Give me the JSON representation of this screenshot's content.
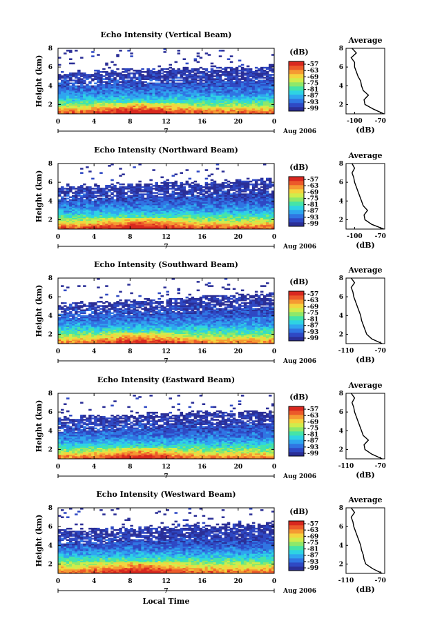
{
  "figure": {
    "xlabel": "Local Time",
    "date_label": "Aug 2006",
    "x_ticks": [
      "0",
      "4",
      "8",
      "12",
      "16",
      "20",
      "0"
    ],
    "x_mid_label": "7",
    "ylabel": "Height (km)",
    "y_ticks": [
      "2",
      "4",
      "6",
      "8"
    ],
    "colorbar_unit": "(dB)",
    "colorbar_ticks": [
      "-57",
      "-63",
      "-69",
      "-75",
      "-81",
      "-87",
      "-93",
      "-99"
    ],
    "colormap": [
      "#2b2f97",
      "#2f49c4",
      "#3075e3",
      "#2fa6ef",
      "#2ed3e3",
      "#45e4a8",
      "#8ee86a",
      "#d0ec4c",
      "#f4d43e",
      "#f59a32",
      "#ec5a2a",
      "#d9281f"
    ],
    "average_title": "Average",
    "average_xlabel": "(dB)"
  },
  "chart_data": [
    {
      "type": "heatmap",
      "title": "Echo Intensity (Vertical Beam)",
      "xlabel": "Local Time",
      "ylabel": "Height (km)",
      "xlim": [
        0,
        24
      ],
      "ylim": [
        1,
        8
      ],
      "colorbar": {
        "label": "(dB)",
        "range": [
          -99,
          -54
        ]
      },
      "average_profile": {
        "title": "Average",
        "xlabel": "(dB)",
        "xlim": [
          -110,
          -65
        ],
        "x_ticks": [
          "-100",
          "-70"
        ],
        "heights": [
          1.0,
          1.5,
          2.0,
          2.5,
          3.0,
          3.5,
          4.0,
          4.5,
          5.0,
          5.5,
          6.0,
          6.5,
          7.0,
          7.5,
          8.0
        ],
        "values": [
          -66,
          -78,
          -88,
          -89,
          -84,
          -90,
          -92,
          -93,
          -96,
          -98,
          -100,
          -100,
          -104,
          -98,
          -103
        ]
      },
      "intensity_field": {
        "bands": [
          {
            "height": 1.2,
            "value": -60
          },
          {
            "height": 2.0,
            "value": -75
          },
          {
            "height": 3.0,
            "value": -87
          },
          {
            "height": 4.0,
            "value": -92
          },
          {
            "height": 5.0,
            "value": -95
          },
          {
            "height": 6.0,
            "value": -97
          },
          {
            "height": 7.2,
            "value": -98
          }
        ],
        "echo_top_km": [
          5.5,
          5.5,
          5.7,
          5.8,
          5.9,
          6.0,
          6.1
        ]
      }
    },
    {
      "type": "heatmap",
      "title": "Echo Intensity (Northward Beam)",
      "xlabel": "Local Time",
      "ylabel": "Height (km)",
      "xlim": [
        0,
        24
      ],
      "ylim": [
        1,
        8
      ],
      "colorbar": {
        "label": "(dB)",
        "range": [
          -99,
          -54
        ]
      },
      "average_profile": {
        "title": "Average",
        "xlabel": "(dB)",
        "xlim": [
          -110,
          -65
        ],
        "x_ticks": [
          "-100",
          "-70"
        ],
        "heights": [
          1.0,
          1.5,
          2.0,
          2.5,
          3.0,
          3.5,
          4.0,
          4.5,
          5.0,
          5.5,
          6.0,
          6.5,
          7.0,
          7.5,
          8.0
        ],
        "values": [
          -66,
          -80,
          -88,
          -89,
          -85,
          -90,
          -92,
          -94,
          -96,
          -98,
          -100,
          -101,
          -103,
          -100,
          -103
        ]
      },
      "intensity_field": {
        "bands": [
          {
            "height": 1.2,
            "value": -60
          },
          {
            "height": 2.0,
            "value": -74
          },
          {
            "height": 3.0,
            "value": -86
          },
          {
            "height": 4.0,
            "value": -92
          },
          {
            "height": 5.0,
            "value": -95
          },
          {
            "height": 6.0,
            "value": -97
          },
          {
            "height": 7.2,
            "value": -98
          }
        ],
        "echo_top_km": [
          5.6,
          5.6,
          5.8,
          6.0,
          6.0,
          6.2,
          6.3
        ]
      }
    },
    {
      "type": "heatmap",
      "title": "Echo Intensity (Southward Beam)",
      "xlabel": "Local Time",
      "ylabel": "Height (km)",
      "xlim": [
        0,
        24
      ],
      "ylim": [
        1,
        8
      ],
      "colorbar": {
        "label": "(dB)",
        "range": [
          -99,
          -54
        ]
      },
      "average_profile": {
        "title": "Average",
        "xlabel": "(dB)",
        "xlim": [
          -110,
          -65
        ],
        "x_ticks": [
          "-110",
          "-70"
        ],
        "heights": [
          1.0,
          1.5,
          2.0,
          2.5,
          3.0,
          3.5,
          4.0,
          4.5,
          5.0,
          5.5,
          6.0,
          6.5,
          7.0,
          7.5,
          8.0
        ],
        "values": [
          -68,
          -80,
          -86,
          -88,
          -90,
          -92,
          -93,
          -95,
          -97,
          -99,
          -101,
          -102,
          -104,
          -100,
          -104
        ]
      },
      "intensity_field": {
        "bands": [
          {
            "height": 1.2,
            "value": -62
          },
          {
            "height": 2.0,
            "value": -76
          },
          {
            "height": 3.0,
            "value": -86
          },
          {
            "height": 4.0,
            "value": -92
          },
          {
            "height": 5.0,
            "value": -95
          },
          {
            "height": 6.0,
            "value": -97
          },
          {
            "height": 7.2,
            "value": -98
          }
        ],
        "echo_top_km": [
          5.2,
          5.4,
          5.6,
          5.8,
          6.0,
          6.2,
          6.4
        ]
      }
    },
    {
      "type": "heatmap",
      "title": "Echo Intensity (Eastward Beam)",
      "xlabel": "Local Time",
      "ylabel": "Height (km)",
      "xlim": [
        0,
        24
      ],
      "ylim": [
        1,
        8
      ],
      "colorbar": {
        "label": "(dB)",
        "range": [
          -99,
          -54
        ]
      },
      "average_profile": {
        "title": "Average",
        "xlabel": "(dB)",
        "xlim": [
          -110,
          -65
        ],
        "x_ticks": [
          "-110",
          "-70"
        ],
        "heights": [
          1.0,
          1.5,
          2.0,
          2.5,
          3.0,
          3.5,
          4.0,
          4.5,
          5.0,
          5.5,
          6.0,
          6.5,
          7.0,
          7.5,
          8.0
        ],
        "values": [
          -68,
          -80,
          -88,
          -89,
          -84,
          -90,
          -92,
          -94,
          -96,
          -98,
          -100,
          -101,
          -103,
          -100,
          -104
        ]
      },
      "intensity_field": {
        "bands": [
          {
            "height": 1.2,
            "value": -62
          },
          {
            "height": 2.0,
            "value": -76
          },
          {
            "height": 3.0,
            "value": -87
          },
          {
            "height": 4.0,
            "value": -92
          },
          {
            "height": 5.0,
            "value": -95
          },
          {
            "height": 6.0,
            "value": -97
          },
          {
            "height": 7.2,
            "value": -98
          }
        ],
        "echo_top_km": [
          5.4,
          5.5,
          5.7,
          5.9,
          6.0,
          6.1,
          6.2
        ]
      }
    },
    {
      "type": "heatmap",
      "title": "Echo Intensity (Westward Beam)",
      "xlabel": "Local Time",
      "ylabel": "Height (km)",
      "xlim": [
        0,
        24
      ],
      "ylim": [
        1,
        8
      ],
      "colorbar": {
        "label": "(dB)",
        "range": [
          -99,
          -54
        ]
      },
      "average_profile": {
        "title": "Average",
        "xlabel": "(dB)",
        "xlim": [
          -110,
          -65
        ],
        "x_ticks": [
          "-110",
          "-70"
        ],
        "heights": [
          1.0,
          1.5,
          2.0,
          2.5,
          3.0,
          3.5,
          4.0,
          4.5,
          5.0,
          5.5,
          6.0,
          6.5,
          7.0,
          7.5,
          8.0
        ],
        "values": [
          -68,
          -79,
          -87,
          -89,
          -90,
          -92,
          -93,
          -95,
          -97,
          -99,
          -101,
          -102,
          -104,
          -100,
          -104
        ]
      },
      "intensity_field": {
        "bands": [
          {
            "height": 1.2,
            "value": -61
          },
          {
            "height": 2.0,
            "value": -73
          },
          {
            "height": 3.0,
            "value": -85
          },
          {
            "height": 4.0,
            "value": -92
          },
          {
            "height": 5.0,
            "value": -95
          },
          {
            "height": 6.0,
            "value": -97
          },
          {
            "height": 7.2,
            "value": -98
          }
        ],
        "echo_top_km": [
          5.6,
          5.7,
          5.9,
          6.1,
          6.2,
          6.3,
          6.4
        ]
      }
    }
  ]
}
